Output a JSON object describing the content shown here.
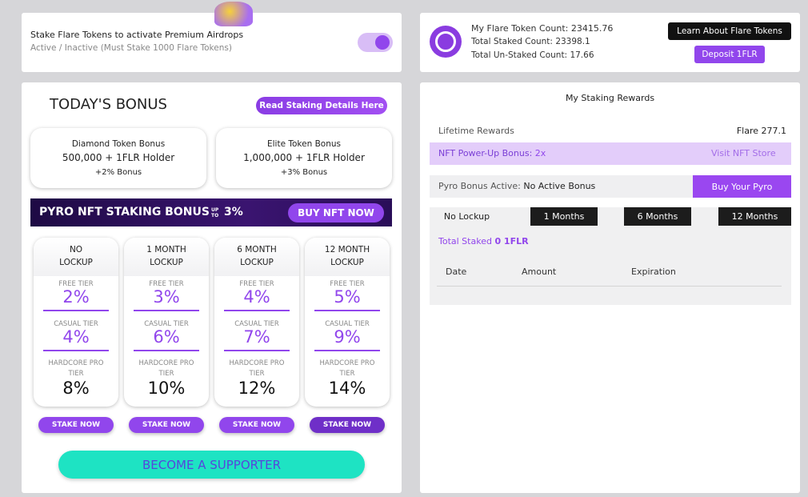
{
  "stake_toggle": {
    "title": "Stake Flare Tokens to activate Premium Airdrops",
    "subtitle": "Active / Inactive (Must Stake 1000 Flare Tokens)"
  },
  "token_info": {
    "count_label": "My Flare Token Count:",
    "count": "23415.76",
    "staked_label": "Total Staked Count:",
    "staked": "23398.1",
    "unstaked_label": "Total Un-Staked Count:",
    "unstaked": "17.66",
    "learn_button": "Learn About Flare Tokens",
    "deposit_button": "Deposit 1FLR"
  },
  "bonus": {
    "title": "TODAY'S BONUS",
    "details_button": "Read Staking Details Here",
    "cards": [
      {
        "name": "Diamond Token Bonus",
        "requirement": "500,000 + 1FLR Holder",
        "bonus": "+2% Bonus"
      },
      {
        "name": "Elite Token Bonus",
        "requirement": "1,000,000 + 1FLR Holder",
        "bonus": "+3% Bonus"
      }
    ]
  },
  "banner": {
    "text": "PYRO NFT STAKING BONUS",
    "upto": "UP TO",
    "percent": "3%",
    "button": "BUY NFT NOW"
  },
  "plans": [
    {
      "lockup": [
        "NO",
        "LOCKUP"
      ],
      "tiers": [
        {
          "name": "FREE TIER",
          "rate": "2%"
        },
        {
          "name": "CASUAL TIER",
          "rate": "4%"
        },
        {
          "name": "HARDCORE PRO TIER",
          "rate": "8%"
        }
      ],
      "button": "STAKE NOW"
    },
    {
      "lockup": [
        "1 MONTH",
        "LOCKUP"
      ],
      "tiers": [
        {
          "name": "FREE TIER",
          "rate": "3%"
        },
        {
          "name": "CASUAL TIER",
          "rate": "6%"
        },
        {
          "name": "HARDCORE PRO TIER",
          "rate": "10%"
        }
      ],
      "button": "STAKE NOW"
    },
    {
      "lockup": [
        "6 MONTH",
        "LOCKUP"
      ],
      "tiers": [
        {
          "name": "FREE TIER",
          "rate": "4%"
        },
        {
          "name": "CASUAL TIER",
          "rate": "7%"
        },
        {
          "name": "HARDCORE PRO TIER",
          "rate": "12%"
        }
      ],
      "button": "STAKE NOW"
    },
    {
      "lockup": [
        "12 MONTH",
        "LOCKUP"
      ],
      "tiers": [
        {
          "name": "FREE TIER",
          "rate": "5%"
        },
        {
          "name": "CASUAL TIER",
          "rate": "9%"
        },
        {
          "name": "HARDCORE PRO TIER",
          "rate": "14%"
        }
      ],
      "button": "STAKE NOW"
    }
  ],
  "supporter_button": "BECOME A SUPPORTER",
  "rewards": {
    "title": "My Staking Rewards",
    "lifetime_label": "Lifetime Rewards",
    "lifetime_value": "Flare 277.1",
    "nft_label": "NFT Power-Up Bonus:",
    "nft_value": "2x",
    "nft_link": "Visit NFT Store",
    "pyro_label": "Pyro Bonus Active:",
    "pyro_value": "No Active Bonus",
    "pyro_button": "Buy Your Pyro",
    "tabs": [
      "No Lockup",
      "1 Months",
      "6 Months",
      "12 Months"
    ],
    "total_label": "Total Staked",
    "total_value": "0 1FLR",
    "columns": [
      "Date",
      "Amount",
      "Expiration"
    ]
  }
}
